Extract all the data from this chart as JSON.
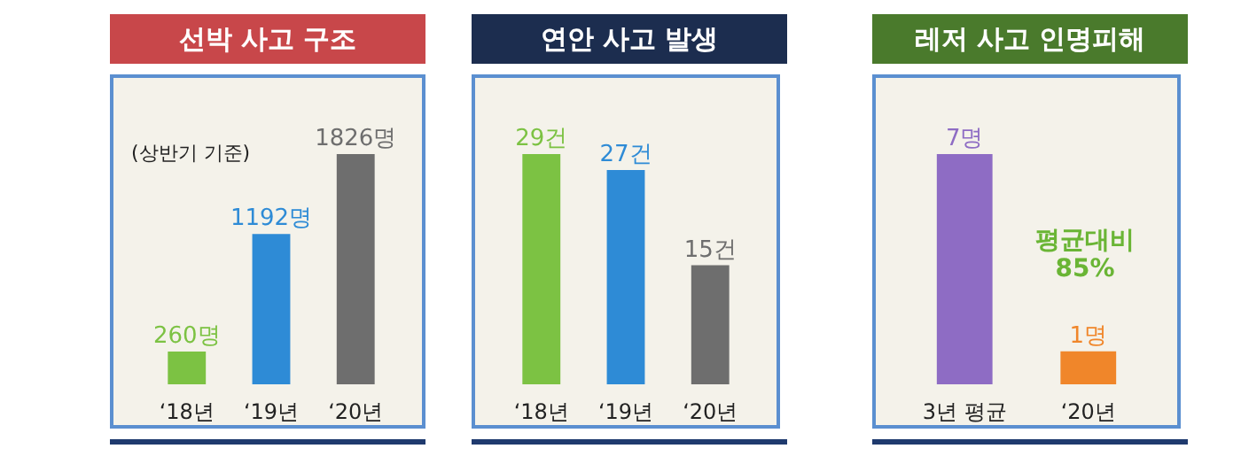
{
  "chart_data": [
    {
      "type": "bar",
      "title": "선박 사고 구조",
      "categories": [
        "‘18년",
        "‘19년",
        "‘20년"
      ],
      "values": [
        260,
        1192,
        1826
      ],
      "colors": [
        "#7cc243",
        "#2e8bd6",
        "#6e6e6e"
      ],
      "value_labels": [
        "260명",
        "1192명",
        "1826명"
      ],
      "annotations": [
        "(상반기 기준)"
      ]
    },
    {
      "type": "bar",
      "title": "연안 사고 발생",
      "categories": [
        "‘18년",
        "‘19년",
        "‘20년"
      ],
      "values": [
        29,
        27,
        15
      ],
      "colors": [
        "#7cc243",
        "#2e8bd6",
        "#6e6e6e"
      ],
      "value_labels": [
        "29건",
        "27건",
        "15건"
      ]
    },
    {
      "type": "bar",
      "title": "레저 사고 인명피해",
      "categories": [
        "3년 평균",
        "‘20년"
      ],
      "values": [
        7,
        1
      ],
      "colors": [
        "#8e6cc4",
        "#f0862a"
      ],
      "value_labels": [
        "7명",
        "1명"
      ],
      "annotations": [
        "평균대비\n85%"
      ]
    }
  ]
}
